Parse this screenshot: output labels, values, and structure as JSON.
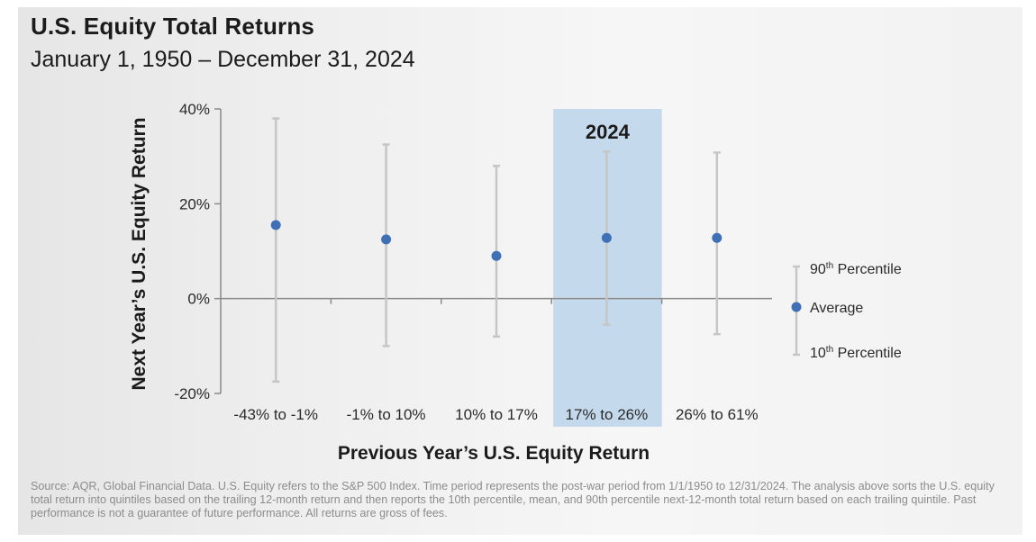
{
  "title": "U.S. Equity Total Returns",
  "subtitle": "January 1, 1950 – December 31, 2024",
  "footnote": "Source: AQR, Global Financial Data. U.S. Equity refers to the S&P 500 Index. Time period represents the post-war period from 1/1/1950 to 12/31/2024. The analysis above sorts the U.S. equity total return into quintiles based on the trailing 12-month return and then reports the 10th percentile, mean, and 90th percentile next-12-month total return based on each trailing quintile. Past performance is not a guarantee of future performance. All returns are gross of fees.",
  "colors": {
    "marker": "#3f6fb5",
    "whisker": "#c6c6c6",
    "highlight": "#c5d9ec",
    "axis": "#8a8a8a"
  },
  "legend": {
    "p90_prefix": "90",
    "p90_sup": "th",
    "p90_suffix": " Percentile",
    "avg": "Average",
    "p10_prefix": "10",
    "p10_sup": "th",
    "p10_suffix": " Percentile"
  },
  "chart_data": {
    "type": "scatter",
    "xlabel": "Previous Year’s U.S. Equity Return",
    "ylabel": "Next Year’s U.S. Equity Return",
    "ylim": [
      -20,
      40
    ],
    "yticks": [
      -20,
      0,
      20,
      40
    ],
    "ytick_labels": [
      "-20%",
      "0%",
      "20%",
      "40%"
    ],
    "categories": [
      "-43% to -1%",
      "-1% to 10%",
      "10% to 17%",
      "17% to 26%",
      "26% to 61%"
    ],
    "highlight": {
      "category": "17% to 26%",
      "label": "2024"
    },
    "series": [
      {
        "name": "Average",
        "values": [
          15.5,
          12.5,
          9.0,
          12.8,
          12.8
        ]
      },
      {
        "name": "90th Percentile",
        "values": [
          38.0,
          32.5,
          28.0,
          31.0,
          30.8
        ]
      },
      {
        "name": "10th Percentile",
        "values": [
          -17.5,
          -10.0,
          -8.0,
          -5.5,
          -7.5
        ]
      }
    ],
    "grid": false,
    "legend_position": "right"
  }
}
